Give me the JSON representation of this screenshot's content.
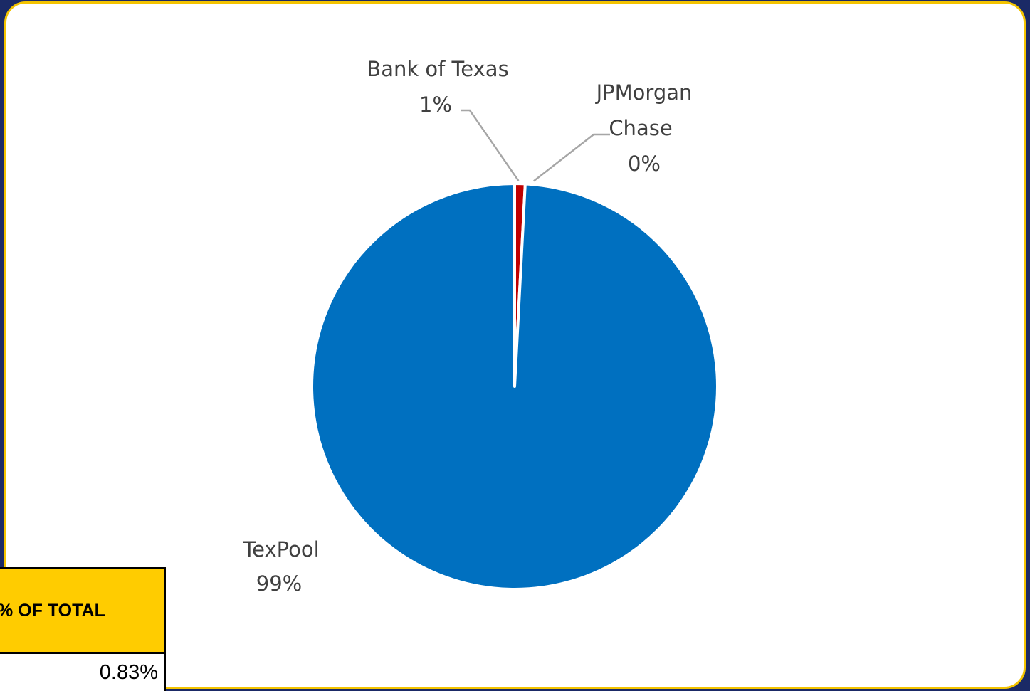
{
  "chart_data": {
    "type": "pie",
    "slices": [
      {
        "name": "Bank of Texas",
        "value": 0.83,
        "label": "Bank of Texas",
        "pct_label": "1%",
        "color": "#c00000"
      },
      {
        "name": "JPMorgan Chase",
        "value": 0.0,
        "label_lines": [
          "JPMorgan",
          "Chase"
        ],
        "pct_label": "0%",
        "color": "#ffc000"
      },
      {
        "name": "TexPool",
        "value": 99.17,
        "label": "TexPool",
        "pct_label": "99%",
        "color": "#0070c0"
      }
    ]
  },
  "table": {
    "header": "% OF TOTAL",
    "value": "0.83%"
  },
  "colors": {
    "background": "#1b2a66",
    "frame_border": "#f3c300",
    "table_header_bg": "#ffcc00"
  }
}
